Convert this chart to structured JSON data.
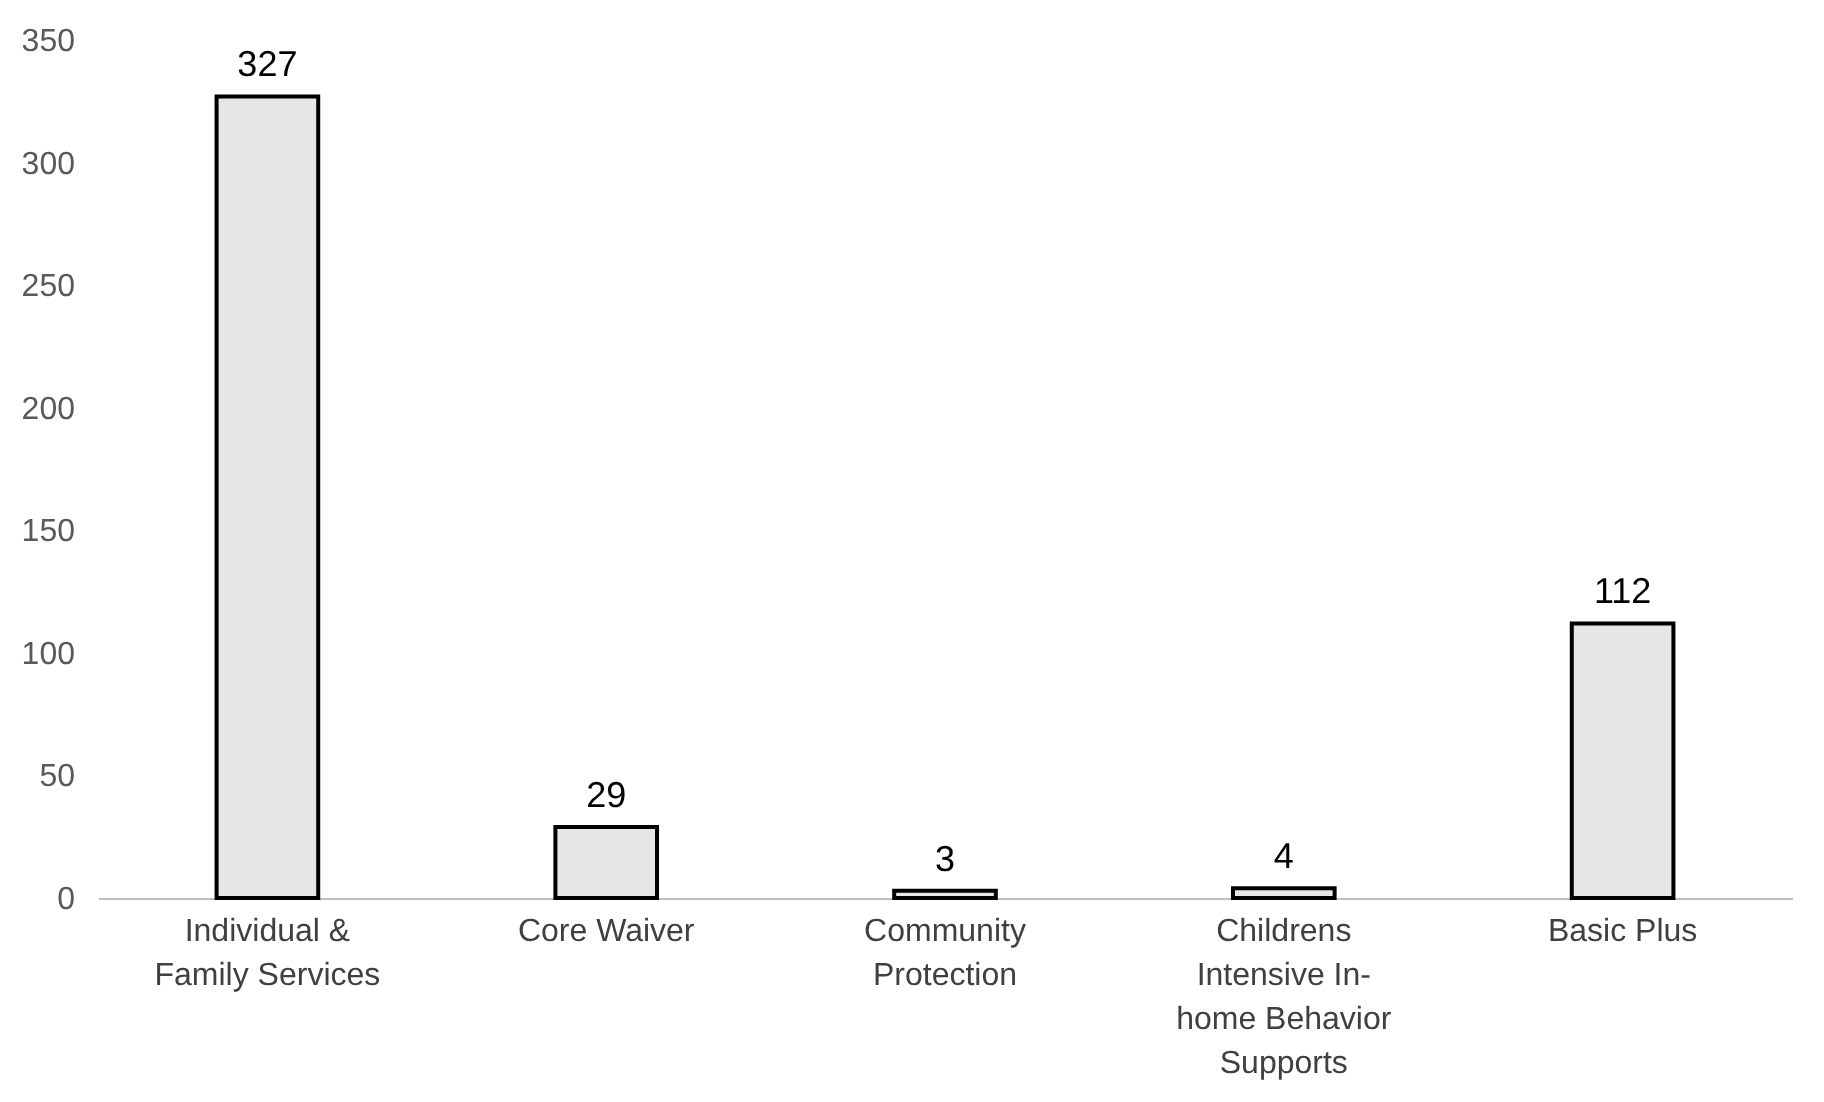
{
  "chart_data": {
    "type": "bar",
    "categories": [
      "Individual & Family Services",
      "Core Waiver",
      "Community Protection",
      "Childrens Intensive In-home Behavior Supports",
      "Basic Plus"
    ],
    "values": [
      327,
      29,
      3,
      4,
      112
    ],
    "color": "#e6e6e6",
    "ylim": [
      0,
      350
    ],
    "yticks": [
      0,
      50,
      100,
      150,
      200,
      250,
      300,
      350
    ],
    "data_labels": true
  }
}
